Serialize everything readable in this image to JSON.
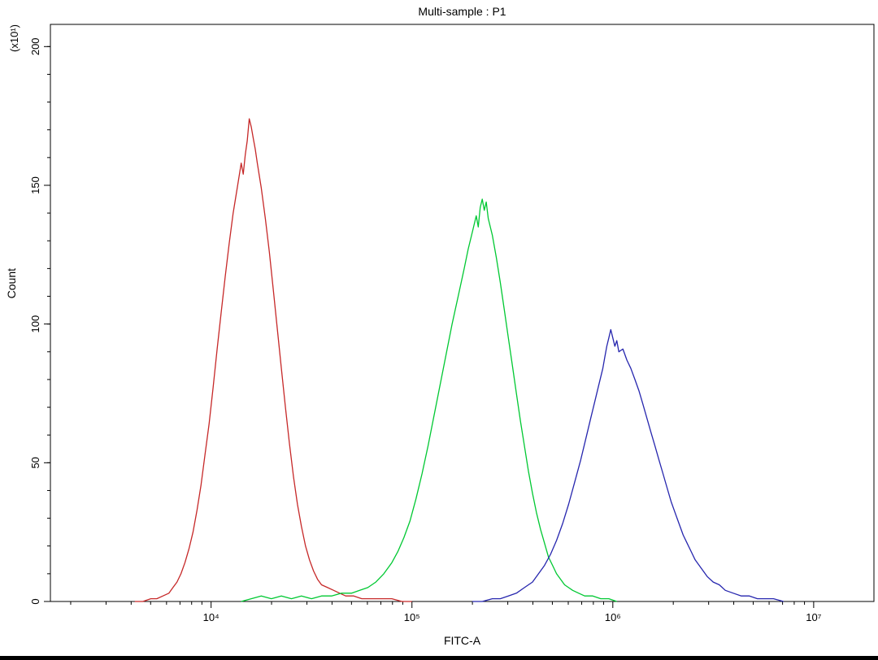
{
  "chart_data": {
    "type": "line",
    "subtype": "flow-cytometry-histogram-overlay",
    "title": "Multi-sample : P1",
    "xlabel": "FITC-A",
    "ylabel": "Count",
    "ylabel_multiplier": "(x10¹)",
    "x_scale": "log10",
    "xlim_log10": [
      3.2,
      7.3
    ],
    "ylim": [
      0,
      208
    ],
    "grid": false,
    "background_color": "#ffffff",
    "axis_color": "#000000",
    "x_major_ticks": [
      {
        "log10": 4,
        "label": "10⁴"
      },
      {
        "log10": 5,
        "label": "10⁵"
      },
      {
        "log10": 6,
        "label": "10⁶"
      },
      {
        "log10": 7,
        "label": "10⁷"
      }
    ],
    "y_major_ticks": [
      0,
      50,
      100,
      150,
      200
    ],
    "y_minor_step": 10,
    "series": [
      {
        "name": "red",
        "color": "#c62828",
        "peak_x": 15000,
        "peak_y": 174,
        "points": [
          [
            3.62,
            0
          ],
          [
            3.66,
            0
          ],
          [
            3.7,
            1
          ],
          [
            3.73,
            1
          ],
          [
            3.76,
            2
          ],
          [
            3.79,
            3
          ],
          [
            3.81,
            5
          ],
          [
            3.83,
            7
          ],
          [
            3.85,
            10
          ],
          [
            3.87,
            14
          ],
          [
            3.89,
            19
          ],
          [
            3.91,
            25
          ],
          [
            3.93,
            33
          ],
          [
            3.95,
            42
          ],
          [
            3.97,
            53
          ],
          [
            3.99,
            64
          ],
          [
            4.01,
            77
          ],
          [
            4.03,
            91
          ],
          [
            4.05,
            104
          ],
          [
            4.07,
            117
          ],
          [
            4.09,
            129
          ],
          [
            4.11,
            140
          ],
          [
            4.13,
            149
          ],
          [
            4.15,
            158
          ],
          [
            4.16,
            154
          ],
          [
            4.17,
            161
          ],
          [
            4.18,
            166
          ],
          [
            4.19,
            174
          ],
          [
            4.2,
            171
          ],
          [
            4.21,
            167
          ],
          [
            4.22,
            163
          ],
          [
            4.23,
            158
          ],
          [
            4.25,
            149
          ],
          [
            4.27,
            138
          ],
          [
            4.29,
            126
          ],
          [
            4.31,
            112
          ],
          [
            4.33,
            98
          ],
          [
            4.35,
            84
          ],
          [
            4.37,
            70
          ],
          [
            4.39,
            57
          ],
          [
            4.41,
            45
          ],
          [
            4.43,
            35
          ],
          [
            4.45,
            27
          ],
          [
            4.47,
            20
          ],
          [
            4.49,
            15
          ],
          [
            4.51,
            11
          ],
          [
            4.53,
            8
          ],
          [
            4.55,
            6
          ],
          [
            4.58,
            5
          ],
          [
            4.61,
            4
          ],
          [
            4.64,
            3
          ],
          [
            4.67,
            2
          ],
          [
            4.71,
            2
          ],
          [
            4.75,
            1
          ],
          [
            4.8,
            1
          ],
          [
            4.85,
            1
          ],
          [
            4.9,
            1
          ],
          [
            4.95,
            0
          ],
          [
            5.0,
            0
          ]
        ]
      },
      {
        "name": "green",
        "color": "#00c832",
        "peak_x": 200000,
        "peak_y": 145,
        "points": [
          [
            4.15,
            0
          ],
          [
            4.2,
            1
          ],
          [
            4.25,
            2
          ],
          [
            4.3,
            1
          ],
          [
            4.35,
            2
          ],
          [
            4.4,
            1
          ],
          [
            4.45,
            2
          ],
          [
            4.5,
            1
          ],
          [
            4.55,
            2
          ],
          [
            4.6,
            2
          ],
          [
            4.65,
            3
          ],
          [
            4.7,
            3
          ],
          [
            4.74,
            4
          ],
          [
            4.78,
            5
          ],
          [
            4.82,
            7
          ],
          [
            4.86,
            10
          ],
          [
            4.9,
            14
          ],
          [
            4.93,
            18
          ],
          [
            4.96,
            23
          ],
          [
            4.99,
            29
          ],
          [
            5.02,
            37
          ],
          [
            5.05,
            46
          ],
          [
            5.08,
            56
          ],
          [
            5.11,
            67
          ],
          [
            5.14,
            78
          ],
          [
            5.17,
            89
          ],
          [
            5.2,
            100
          ],
          [
            5.23,
            110
          ],
          [
            5.26,
            120
          ],
          [
            5.28,
            127
          ],
          [
            5.3,
            133
          ],
          [
            5.32,
            139
          ],
          [
            5.33,
            135
          ],
          [
            5.34,
            142
          ],
          [
            5.35,
            145
          ],
          [
            5.36,
            141
          ],
          [
            5.37,
            144
          ],
          [
            5.38,
            138
          ],
          [
            5.4,
            132
          ],
          [
            5.42,
            124
          ],
          [
            5.44,
            115
          ],
          [
            5.46,
            105
          ],
          [
            5.48,
            95
          ],
          [
            5.5,
            85
          ],
          [
            5.52,
            75
          ],
          [
            5.54,
            65
          ],
          [
            5.56,
            56
          ],
          [
            5.58,
            47
          ],
          [
            5.6,
            39
          ],
          [
            5.62,
            32
          ],
          [
            5.64,
            26
          ],
          [
            5.66,
            21
          ],
          [
            5.68,
            16
          ],
          [
            5.7,
            13
          ],
          [
            5.72,
            10
          ],
          [
            5.74,
            8
          ],
          [
            5.76,
            6
          ],
          [
            5.78,
            5
          ],
          [
            5.8,
            4
          ],
          [
            5.83,
            3
          ],
          [
            5.86,
            2
          ],
          [
            5.9,
            2
          ],
          [
            5.94,
            1
          ],
          [
            5.98,
            1
          ],
          [
            6.02,
            0
          ]
        ]
      },
      {
        "name": "blue",
        "color": "#2626ae",
        "peak_x": 950000,
        "peak_y": 98,
        "points": [
          [
            5.3,
            0
          ],
          [
            5.35,
            0
          ],
          [
            5.4,
            1
          ],
          [
            5.44,
            1
          ],
          [
            5.48,
            2
          ],
          [
            5.52,
            3
          ],
          [
            5.56,
            5
          ],
          [
            5.6,
            7
          ],
          [
            5.63,
            10
          ],
          [
            5.66,
            13
          ],
          [
            5.69,
            17
          ],
          [
            5.72,
            22
          ],
          [
            5.75,
            28
          ],
          [
            5.78,
            35
          ],
          [
            5.81,
            43
          ],
          [
            5.84,
            51
          ],
          [
            5.87,
            60
          ],
          [
            5.89,
            66
          ],
          [
            5.91,
            72
          ],
          [
            5.93,
            78
          ],
          [
            5.95,
            84
          ],
          [
            5.96,
            88
          ],
          [
            5.97,
            92
          ],
          [
            5.98,
            95
          ],
          [
            5.99,
            98
          ],
          [
            6.0,
            95
          ],
          [
            6.01,
            92
          ],
          [
            6.02,
            94
          ],
          [
            6.03,
            90
          ],
          [
            6.05,
            91
          ],
          [
            6.07,
            87
          ],
          [
            6.09,
            84
          ],
          [
            6.11,
            80
          ],
          [
            6.13,
            76
          ],
          [
            6.15,
            71
          ],
          [
            6.17,
            66
          ],
          [
            6.19,
            61
          ],
          [
            6.21,
            56
          ],
          [
            6.23,
            51
          ],
          [
            6.25,
            46
          ],
          [
            6.27,
            41
          ],
          [
            6.29,
            36
          ],
          [
            6.31,
            32
          ],
          [
            6.33,
            28
          ],
          [
            6.35,
            24
          ],
          [
            6.37,
            21
          ],
          [
            6.39,
            18
          ],
          [
            6.41,
            15
          ],
          [
            6.44,
            12
          ],
          [
            6.47,
            9
          ],
          [
            6.5,
            7
          ],
          [
            6.53,
            6
          ],
          [
            6.56,
            4
          ],
          [
            6.6,
            3
          ],
          [
            6.64,
            2
          ],
          [
            6.68,
            2
          ],
          [
            6.72,
            1
          ],
          [
            6.76,
            1
          ],
          [
            6.8,
            1
          ],
          [
            6.85,
            0
          ]
        ]
      }
    ]
  }
}
